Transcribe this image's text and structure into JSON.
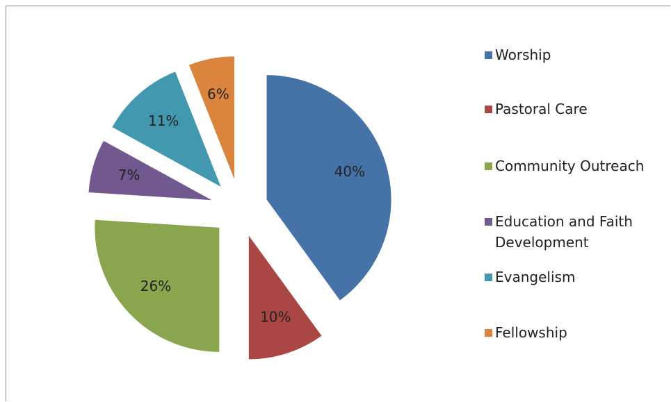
{
  "chart_data": {
    "type": "pie",
    "categories": [
      "Worship",
      "Pastoral Care",
      "Community Outreach",
      "Education and Faith Development",
      "Evangelism",
      "Fellowship"
    ],
    "values": [
      40,
      10,
      26,
      7,
      11,
      6
    ],
    "value_labels": [
      "40%",
      "10%",
      "26%",
      "7%",
      "11%",
      "6%"
    ],
    "colors": [
      "#4572a7",
      "#aa4643",
      "#89a54e",
      "#71588f",
      "#4198af",
      "#db843d"
    ],
    "legend": "right",
    "exploded": true
  }
}
